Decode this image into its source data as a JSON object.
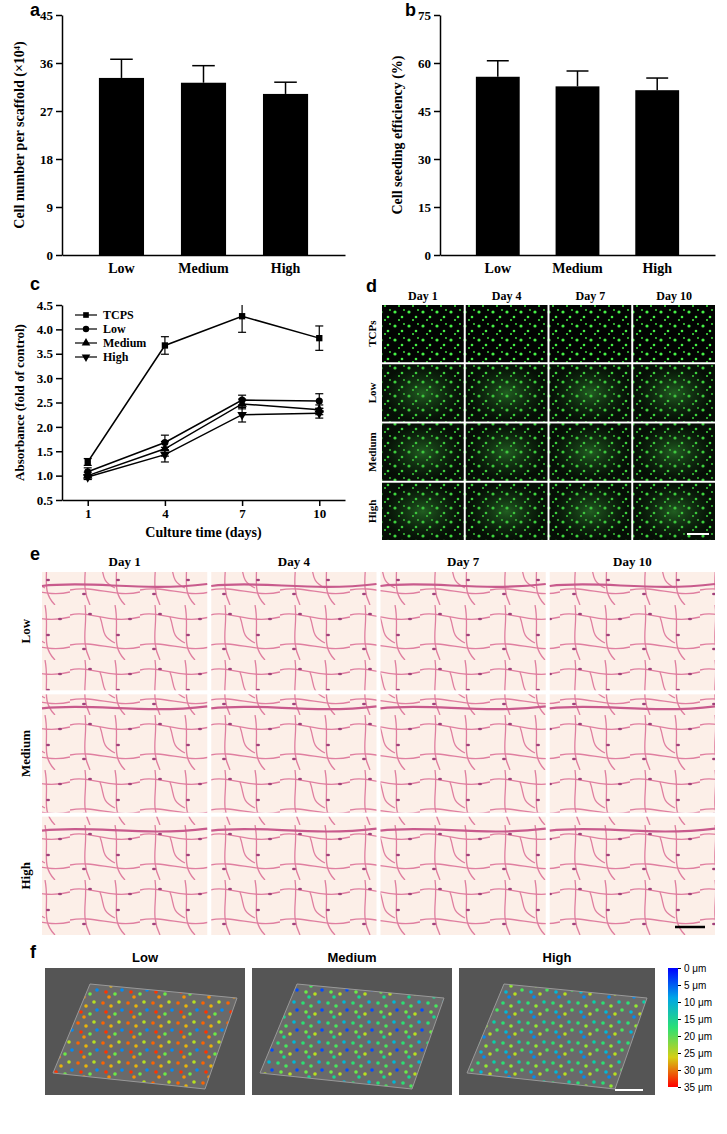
{
  "chart_data": [
    {
      "panel_label": "a",
      "type": "bar",
      "categories": [
        "Low",
        "Medium",
        "High"
      ],
      "values": [
        33.2,
        32.3,
        30.2
      ],
      "errors": [
        3.5,
        3.2,
        2.2
      ],
      "color": "#000000",
      "ylim": [
        0,
        45
      ],
      "yticks": [
        0,
        9,
        18,
        27,
        36,
        45
      ],
      "y_label": "Cell number per scaffold (×10⁴)"
    },
    {
      "panel_label": "b",
      "type": "bar",
      "categories": [
        "Low",
        "Medium",
        "High"
      ],
      "values": [
        55.7,
        52.7,
        51.5
      ],
      "errors": [
        5.0,
        4.8,
        3.8
      ],
      "color": "#000000",
      "ylim": [
        0,
        75
      ],
      "yticks": [
        0,
        15,
        30,
        45,
        60,
        75
      ],
      "y_label": "Cell seeding efficiency (%)"
    },
    {
      "panel_label": "c",
      "type": "line",
      "x": [
        1,
        4,
        7,
        10
      ],
      "xlim": [
        0,
        11
      ],
      "xticks": [
        1,
        4,
        7,
        10
      ],
      "ylim": [
        0.5,
        4.5
      ],
      "yticks": [
        0.5,
        {
          "value": 1,
          "label": "1.0"
        },
        1.5,
        {
          "value": 2,
          "label": "2.0"
        },
        2.5,
        {
          "value": 3,
          "label": "3.0"
        },
        3.5,
        {
          "value": 4,
          "label": "4.0"
        },
        4.5
      ],
      "x_label": "Culture time (days)",
      "y_label": "Absorbance (fold of control)",
      "legend": "top-left",
      "series": [
        {
          "name": "TCPS",
          "color": "#000000",
          "marker": "square",
          "values": [
            1.28,
            3.67,
            4.27,
            3.82
          ],
          "errors": [
            0.07,
            0.18,
            0.33,
            0.25
          ]
        },
        {
          "name": "Low",
          "color": "#000000",
          "marker": "circle",
          "values": [
            1.08,
            1.68,
            2.55,
            2.53
          ],
          "errors": [
            0.08,
            0.15,
            0.1,
            0.15
          ]
        },
        {
          "name": "Medium",
          "color": "#000000",
          "marker": "triangle-up",
          "values": [
            1.0,
            1.55,
            2.47,
            2.35
          ],
          "errors": [
            0.07,
            0.15,
            0.1,
            0.1
          ]
        },
        {
          "name": "High",
          "color": "#000000",
          "marker": "triangle-down",
          "values": [
            0.97,
            1.43,
            2.25,
            2.28
          ],
          "errors": [
            0.05,
            0.15,
            0.15,
            0.1
          ]
        }
      ]
    }
  ],
  "image_panels": {
    "d": {
      "panel_label": "d",
      "columns": [
        "Day 1",
        "Day 4",
        "Day 7",
        "Day 10"
      ],
      "rows": [
        "TCPs",
        "Low",
        "Medium",
        "High"
      ]
    },
    "e": {
      "panel_label": "e",
      "columns": [
        "Day 1",
        "Day 4",
        "Day 7",
        "Day 10"
      ],
      "rows": [
        "Low",
        "Medium",
        "High"
      ]
    },
    "f": {
      "panel_label": "f",
      "panels": [
        "Low",
        "Medium",
        "High"
      ],
      "colorbar": {
        "range": [
          0,
          35
        ],
        "ticks": [
          {
            "value": 0,
            "label": "0 μm"
          },
          {
            "value": 5,
            "label": "5 μm"
          },
          {
            "value": 10,
            "label": "10 μm"
          },
          {
            "value": 15,
            "label": "15 μm"
          },
          {
            "value": 20,
            "label": "20 μm"
          },
          {
            "value": 25,
            "label": "25 μm"
          },
          {
            "value": 30,
            "label": "30 μm"
          },
          {
            "value": 35,
            "label": "35 μm"
          }
        ]
      }
    }
  }
}
